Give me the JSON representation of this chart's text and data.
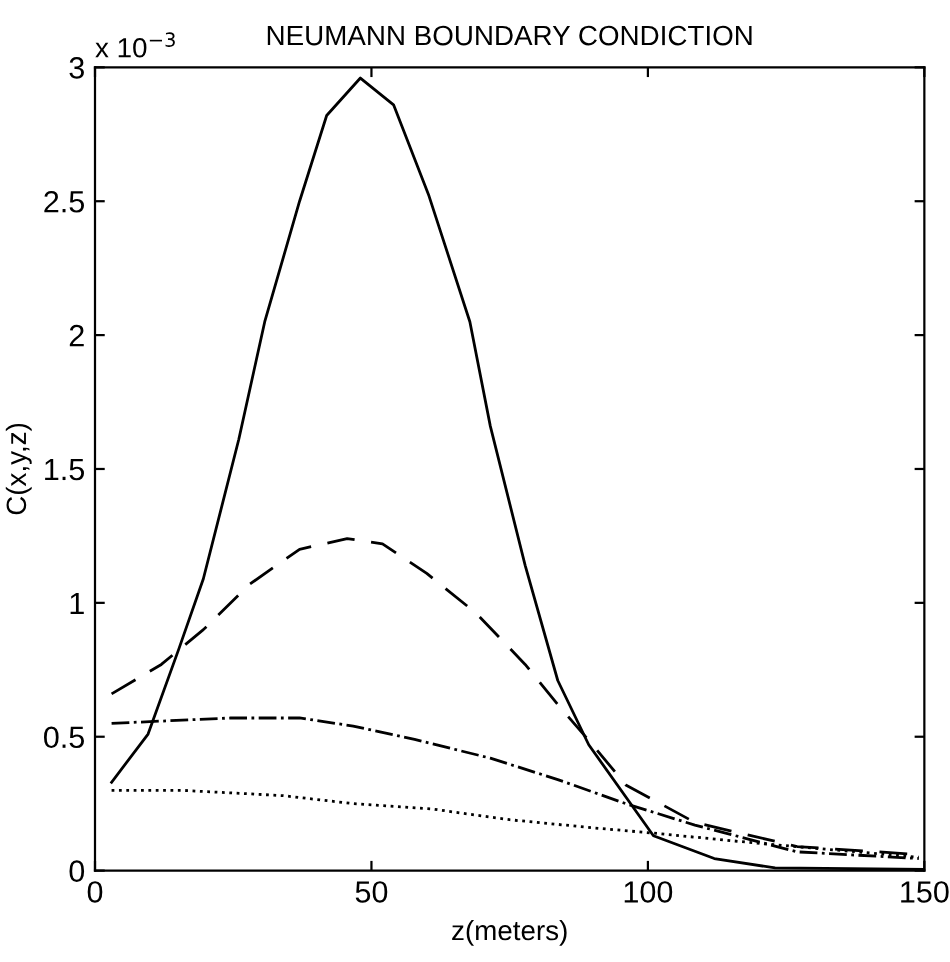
{
  "chart_data": {
    "type": "line",
    "title": "NEUMANN BOUNDARY CONDICTION",
    "xlabel": "z(meters)",
    "ylabel": "C(x,y,z)",
    "annotations": [
      "x 10$^{−3}$"
    ],
    "xlim": [
      0,
      150
    ],
    "xticks": [
      0,
      50,
      100,
      150
    ],
    "ylim": [
      0,
      3
    ],
    "yticks": [
      0,
      0.5,
      1,
      1.5,
      2,
      2.5,
      3
    ],
    "grid": false,
    "series": [
      {
        "color": "#000000",
        "line_style": "solid",
        "x": [
          3,
          9.6,
          15.2,
          19.6,
          26,
          30.7,
          37,
          41.9,
          48,
          54,
          60.4,
          67.8,
          71.5,
          77.8,
          83.7,
          89.3,
          101,
          112,
          123,
          150
        ],
        "values": [
          0.33,
          0.51,
          0.83,
          1.09,
          1.61,
          2.05,
          2.5,
          2.82,
          2.96,
          2.86,
          2.52,
          2.05,
          1.66,
          1.14,
          0.71,
          0.47,
          0.13,
          0.045,
          0.01,
          0.005
        ]
      },
      {
        "color": "#000000",
        "line_style": "dashed",
        "x": [
          3,
          12,
          19.6,
          28,
          37,
          45.6,
          52,
          60,
          69,
          77.8,
          83.7,
          90,
          96,
          108.5,
          127,
          149
        ],
        "values": [
          0.66,
          0.77,
          0.9,
          1.07,
          1.2,
          1.24,
          1.22,
          1.11,
          0.96,
          0.77,
          0.62,
          0.47,
          0.32,
          0.18,
          0.09,
          0.06
        ]
      },
      {
        "color": "#000000",
        "line_style": "dashdot",
        "x": [
          3,
          24.5,
          37,
          46.7,
          57.8,
          71.5,
          83.7,
          96,
          108.5,
          127,
          149
        ],
        "values": [
          0.55,
          0.57,
          0.57,
          0.54,
          0.49,
          0.42,
          0.34,
          0.25,
          0.17,
          0.07,
          0.045
        ]
      },
      {
        "color": "#000000",
        "line_style": "dotted",
        "x": [
          3,
          15.6,
          34,
          46.7,
          61,
          75,
          90,
          101,
          121,
          149
        ],
        "values": [
          0.3,
          0.3,
          0.28,
          0.25,
          0.23,
          0.19,
          0.16,
          0.14,
          0.1,
          0.05
        ]
      }
    ]
  }
}
